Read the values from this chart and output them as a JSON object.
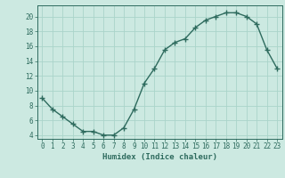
{
  "x": [
    0,
    1,
    2,
    3,
    4,
    5,
    6,
    7,
    8,
    9,
    10,
    11,
    12,
    13,
    14,
    15,
    16,
    17,
    18,
    19,
    20,
    21,
    22,
    23
  ],
  "y": [
    9,
    7.5,
    6.5,
    5.5,
    4.5,
    4.5,
    4.0,
    4.0,
    5.0,
    7.5,
    11.0,
    13.0,
    15.5,
    16.5,
    17.0,
    18.5,
    19.5,
    20.0,
    20.5,
    20.5,
    20.0,
    19.0,
    15.5,
    13.0
  ],
  "line_color": "#2e6b5e",
  "marker": "+",
  "marker_size": 4,
  "marker_linewidth": 1.0,
  "background_color": "#cce9e1",
  "grid_color": "#aad4ca",
  "xlabel": "Humidex (Indice chaleur)",
  "xlim": [
    -0.5,
    23.5
  ],
  "ylim": [
    3.5,
    21.5
  ],
  "yticks": [
    4,
    6,
    8,
    10,
    12,
    14,
    16,
    18,
    20
  ],
  "xticks": [
    0,
    1,
    2,
    3,
    4,
    5,
    6,
    7,
    8,
    9,
    10,
    11,
    12,
    13,
    14,
    15,
    16,
    17,
    18,
    19,
    20,
    21,
    22,
    23
  ],
  "tick_fontsize": 5.5,
  "label_fontsize": 6.5,
  "linewidth": 1.0
}
